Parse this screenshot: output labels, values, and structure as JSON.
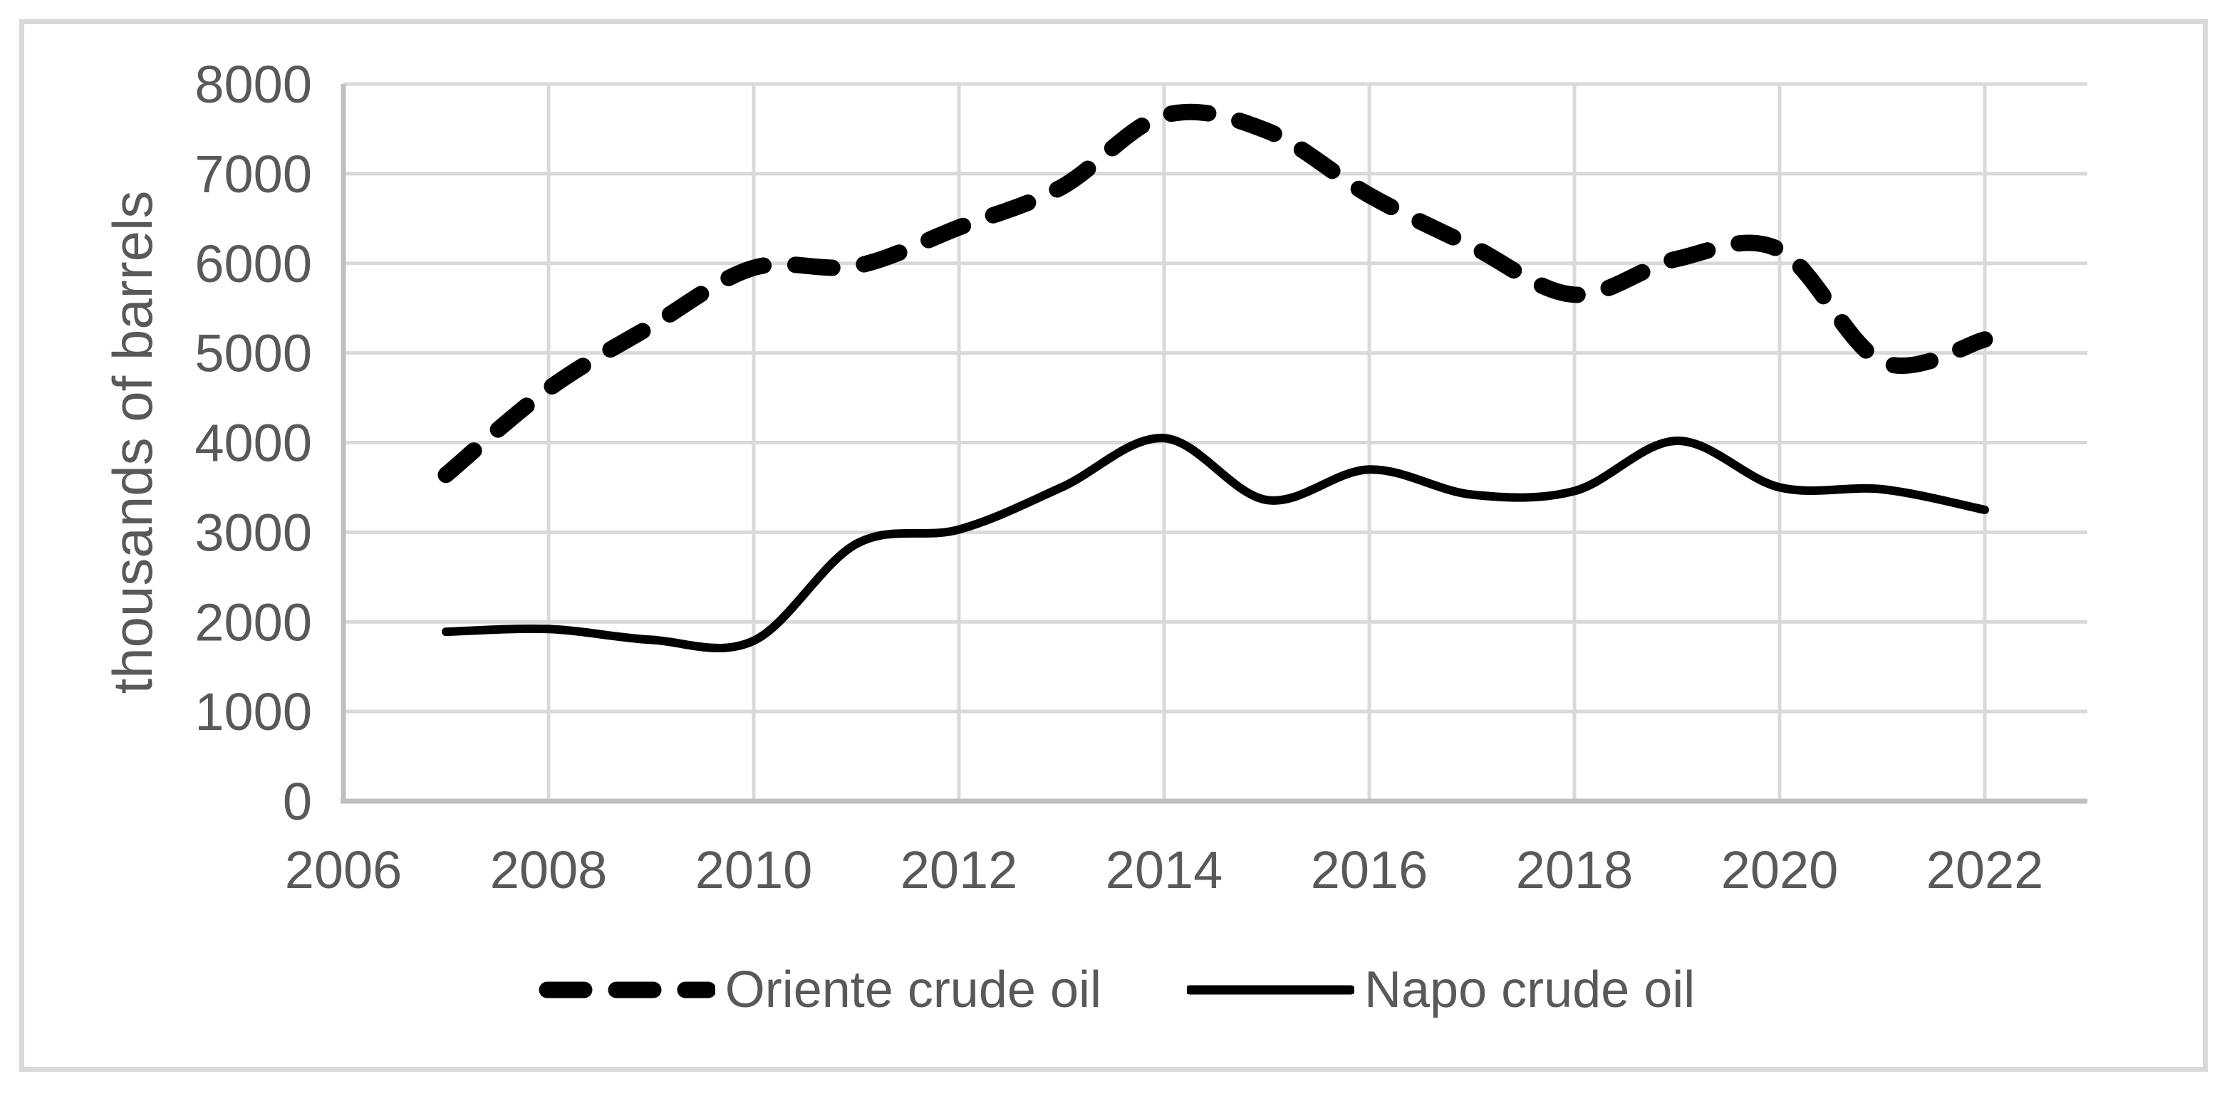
{
  "window": {
    "background": "#ffffff",
    "border_color": "#d9d9d9"
  },
  "chart_data": {
    "type": "line",
    "title": "",
    "xlabel": "",
    "ylabel": "thousands of barrels",
    "x": [
      2007,
      2008,
      2009,
      2010,
      2011,
      2012,
      2013,
      2014,
      2015,
      2016,
      2017,
      2018,
      2019,
      2020,
      2021,
      2022
    ],
    "series": [
      {
        "name": "Oriente crude oil",
        "line_style": "dashed",
        "color": "#000000",
        "values": [
          3640,
          4600,
          5300,
          5950,
          5970,
          6400,
          6850,
          7650,
          7480,
          6760,
          6190,
          5650,
          6050,
          6150,
          4900,
          5150
        ]
      },
      {
        "name": "Napo crude oil",
        "line_style": "solid",
        "color": "#000000",
        "values": [
          1890,
          1920,
          1800,
          1790,
          2870,
          3030,
          3500,
          4050,
          3360,
          3700,
          3420,
          3460,
          4020,
          3500,
          3480,
          3250
        ]
      }
    ],
    "x_ticks": [
      "2006",
      "2008",
      "2010",
      "2012",
      "2014",
      "2016",
      "2018",
      "2020",
      "2022"
    ],
    "y_ticks": [
      "0",
      "1000",
      "2000",
      "3000",
      "4000",
      "5000",
      "6000",
      "7000",
      "8000"
    ],
    "xlim": [
      2006,
      2023
    ],
    "ylim": [
      0,
      8000
    ],
    "grid": true,
    "legend_position": "bottom-center",
    "colors": {
      "grid": "#d9d9d9",
      "axis": "#bfbfbf",
      "text": "#595959",
      "series": "#000000"
    }
  }
}
